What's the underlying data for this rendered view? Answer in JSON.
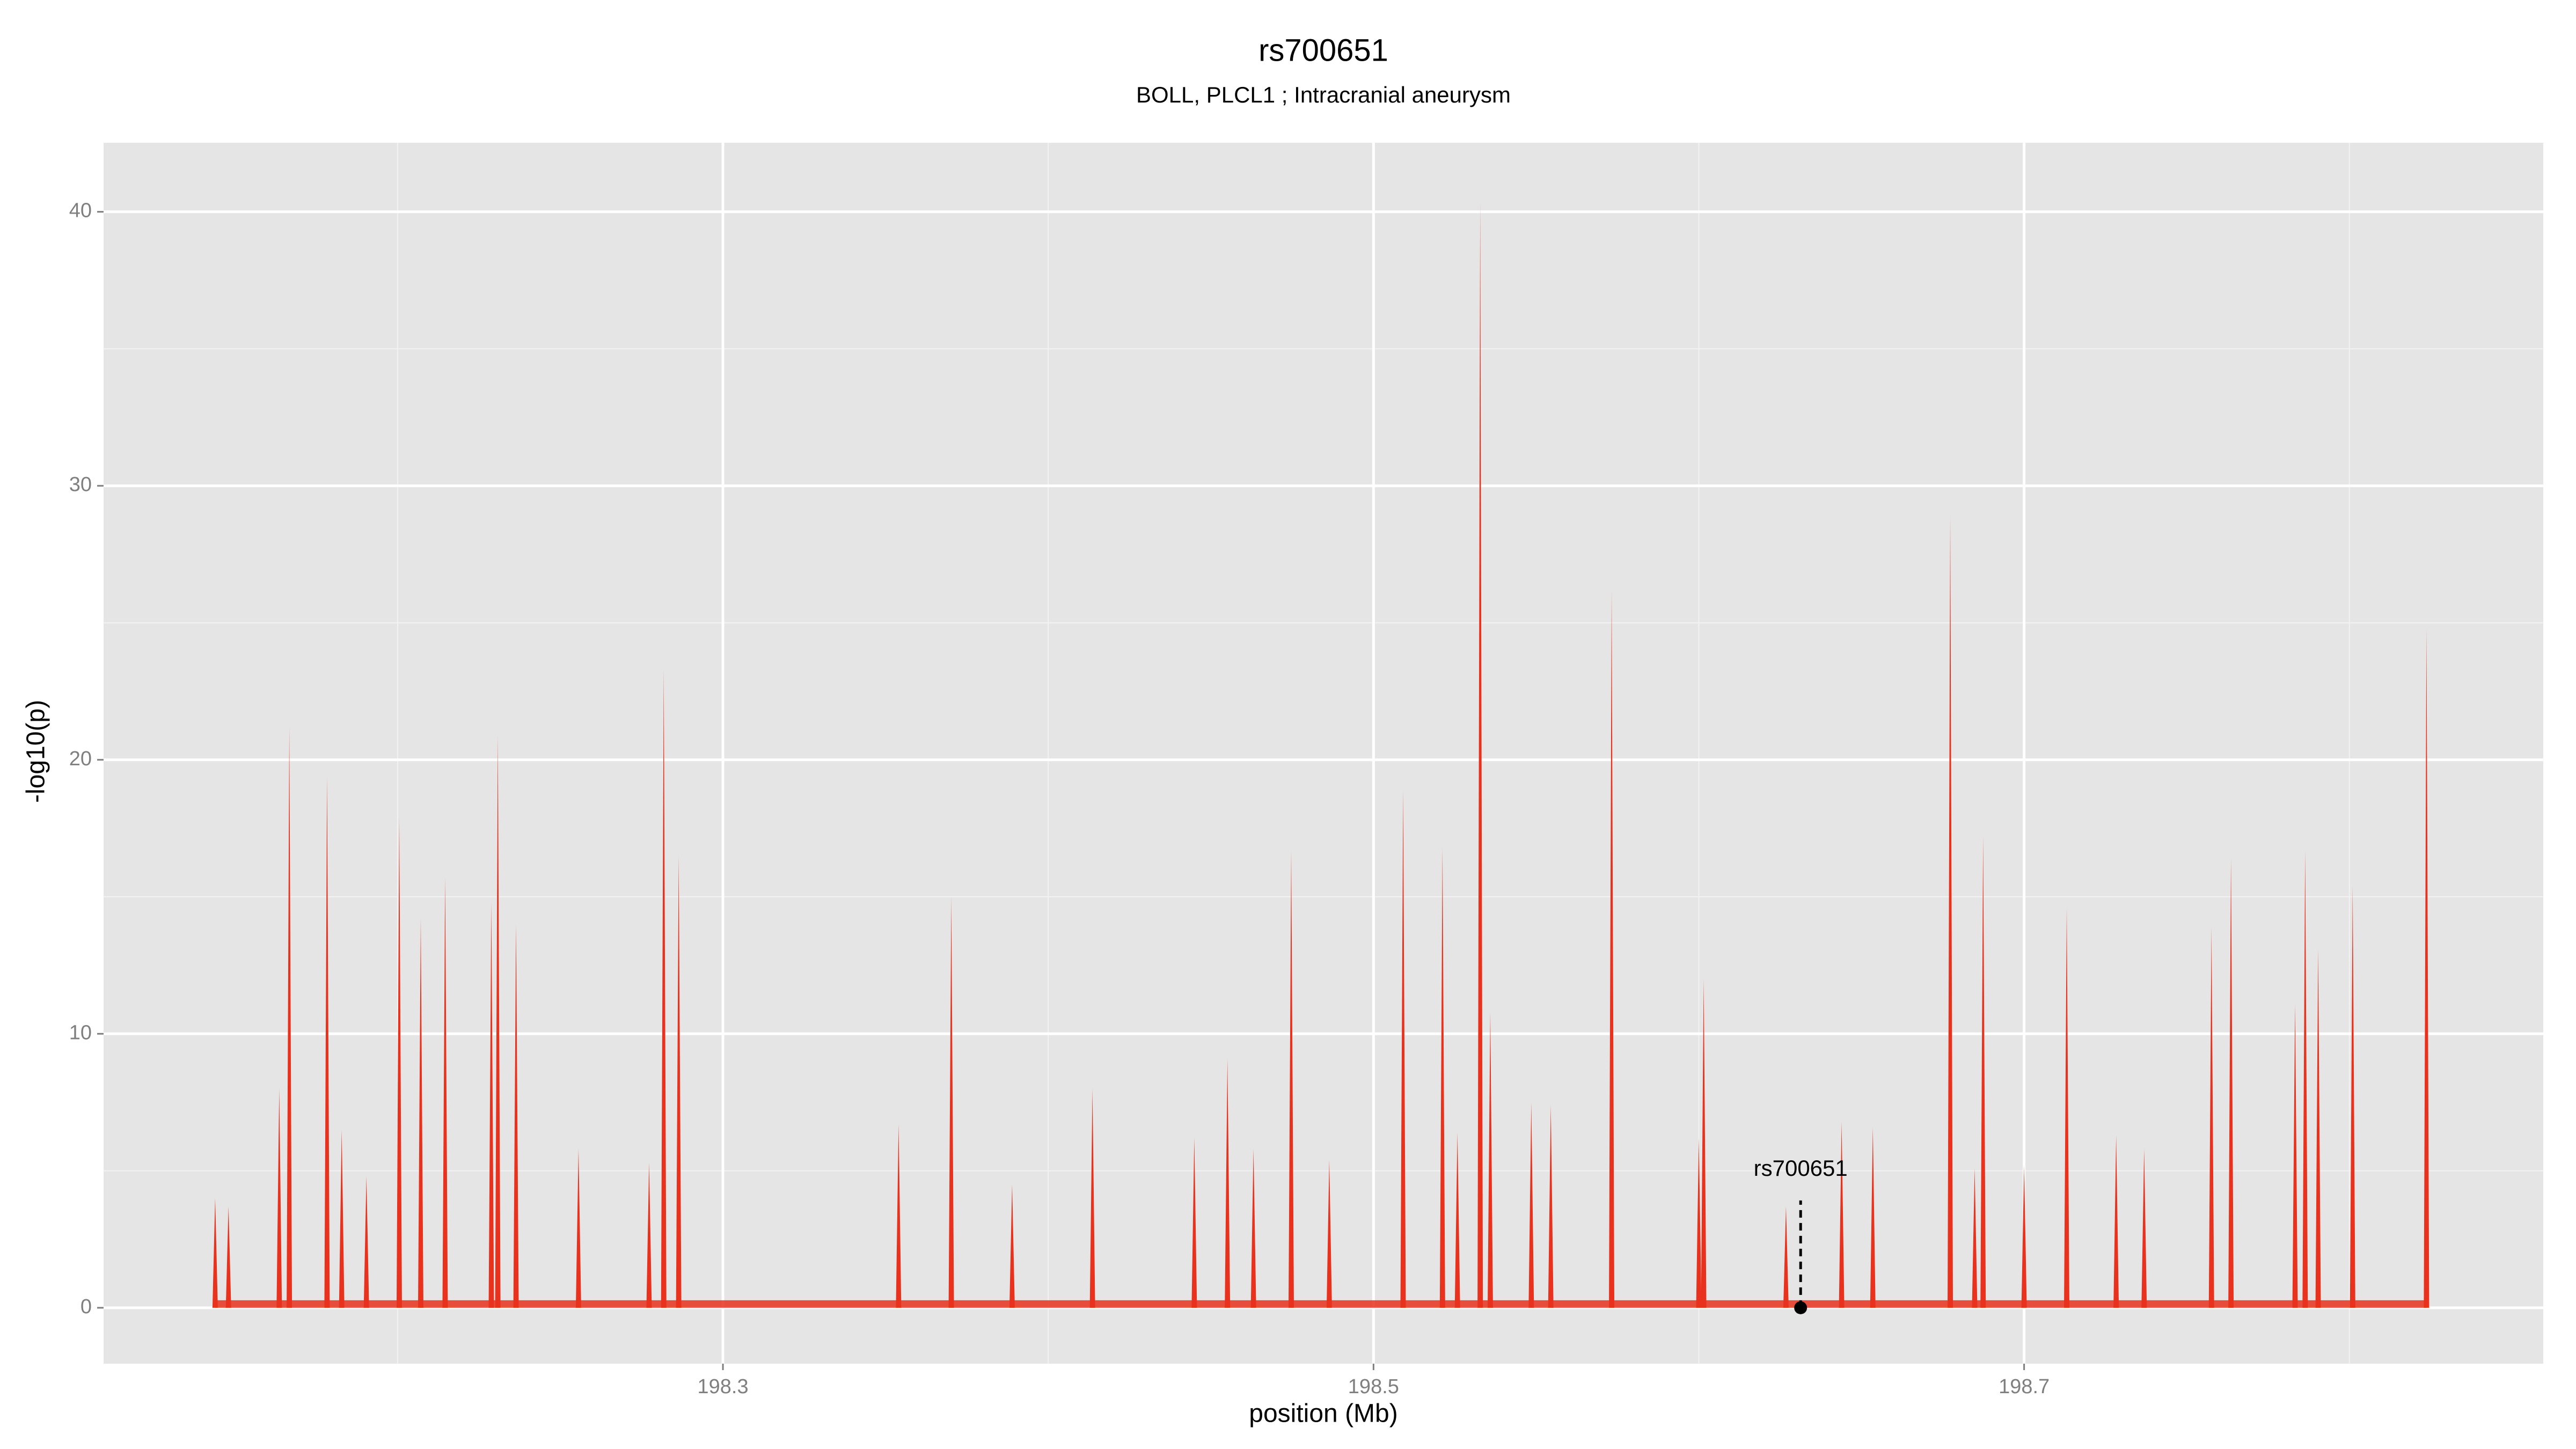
{
  "chart_data": {
    "type": "spike",
    "title": "rs700651",
    "subtitle": "BOLL, PLCL1 ; Intracranial aneurysm",
    "x_label": "position (Mb)",
    "y_label": "-log10(p)",
    "xlim": [
      198.1096,
      198.8596
    ],
    "ylim": [
      -2.04,
      42.52
    ],
    "xticks": [
      198.3,
      198.5,
      198.7
    ],
    "yticks": [
      0,
      10,
      20,
      30,
      40
    ],
    "x_minor_grid": [
      198.2,
      198.4,
      198.6,
      198.8
    ],
    "y_minor_grid": [
      5,
      15,
      25,
      35
    ],
    "grid": true,
    "color": "#e8321e",
    "x": [
      198.1439,
      198.148,
      198.1636,
      198.1667,
      198.1783,
      198.1828,
      198.1904,
      198.2005,
      198.2071,
      198.2146,
      198.2288,
      198.2308,
      198.2364,
      198.2556,
      198.2773,
      198.2818,
      198.2864,
      198.354,
      198.3702,
      198.3889,
      198.4136,
      198.4449,
      198.4551,
      198.4631,
      198.4747,
      198.4864,
      198.5091,
      198.5212,
      198.5258,
      198.5328,
      198.5359,
      198.5485,
      198.5545,
      198.5732,
      198.6,
      198.6015,
      198.6268,
      198.6439,
      198.6535,
      198.6773,
      198.6848,
      198.6874,
      198.7,
      198.7131,
      198.7283,
      198.7369,
      198.7576,
      198.7636,
      198.7833,
      198.7864,
      198.7904,
      198.801,
      198.8237
    ],
    "values": [
      4,
      3.7,
      8,
      21.2,
      19.4,
      6.5,
      4.8,
      17.9,
      14.2,
      15.7,
      14.8,
      20.9,
      14,
      5.8,
      5.3,
      23.3,
      16.5,
      6.7,
      15,
      4.5,
      8,
      6.2,
      9.1,
      5.8,
      16.7,
      5.4,
      18.9,
      16.8,
      6.4,
      40.4,
      10.8,
      7.5,
      7.4,
      26.2,
      6.2,
      12,
      3.7,
      6.8,
      6.6,
      28.9,
      5.1,
      17.2,
      5.2,
      14.6,
      6.3,
      5.8,
      13.9,
      16.4,
      11.1,
      16.7,
      13.1,
      15.4,
      24.8
    ],
    "annotation": {
      "label": "rs700651",
      "x": 198.6313,
      "y": 0
    }
  }
}
